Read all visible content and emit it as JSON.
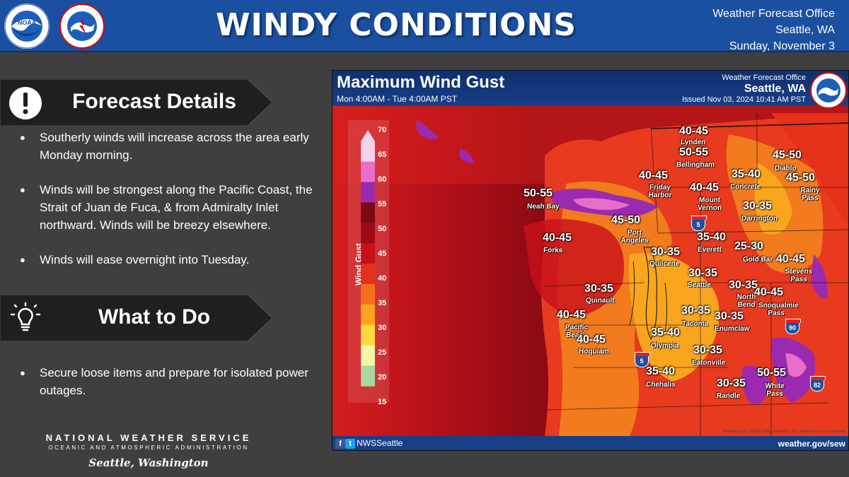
{
  "header": {
    "title": "WINDY CONDITIONS",
    "office": "Weather Forecast Office",
    "city": "Seattle, WA",
    "date": "Sunday, November 3",
    "logos": [
      "noaa-logo",
      "nws-logo"
    ]
  },
  "forecast_details": {
    "heading": "Forecast Details",
    "icon": "exclamation-icon",
    "bullets": [
      "Southerly winds will increase across the area early Monday morning.",
      "Winds will be strongest along the Pacific Coast, the Strait of Juan de Fuca, & from Admiralty Inlet northward. Winds will be breezy elsewhere.",
      "Winds will ease overnight into Tuesday."
    ]
  },
  "what_to_do": {
    "heading": "What to Do",
    "icon": "lightbulb-icon",
    "bullets": [
      "Secure loose items and prepare for isolated power outages."
    ]
  },
  "footer": {
    "agency": "NATIONAL WEATHER SERVICE",
    "subagency": "OCEANIC AND ATMOSPHERIC ADMINISTRATION",
    "location": "Seattle, Washington"
  },
  "map": {
    "title": "Maximum Wind Gust",
    "period": "Mon 4:00AM - Tue 4:00AM PST",
    "office": "Weather Forecast Office",
    "city": "Seattle, WA",
    "issued": "Issued Nov 03, 2024 10:41 AM PST",
    "social": "NWSSeattle",
    "url": "weather.gov/sew",
    "credit": "NRS/Airbus DS, USDA, USGS, AeroGRID, IGN, and the GIS User Community",
    "legend": {
      "label": "Wind Gust (mile_per_hour)",
      "ticks": [
        "70",
        "65",
        "60",
        "55",
        "50",
        "45",
        "40",
        "35",
        "30",
        "25",
        "20",
        "15"
      ],
      "colors": [
        "#f7d3ea",
        "#e86fc8",
        "#9a2bb0",
        "#7a0a14",
        "#9c0c14",
        "#c8101a",
        "#e5301a",
        "#f5701a",
        "#f9a51e",
        "#fbd93c",
        "#f3f5a8",
        "#a8d8a0"
      ]
    },
    "locations": [
      {
        "range": "40-45",
        "name": "Lynden"
      },
      {
        "range": "50-55",
        "name": "Bellingham"
      },
      {
        "range": "45-50",
        "name": "Diablo"
      },
      {
        "range": "40-45",
        "name": "Friday Harbor"
      },
      {
        "range": "35-40",
        "name": "Concrete"
      },
      {
        "range": "45-50",
        "name": "Rainy Pass"
      },
      {
        "range": "50-55",
        "name": "Neah Bay"
      },
      {
        "range": "40-45",
        "name": "Mount Vernon"
      },
      {
        "range": "30-35",
        "name": "Darrington"
      },
      {
        "range": "45-50",
        "name": "Port Angeles"
      },
      {
        "range": "40-45",
        "name": "Forks"
      },
      {
        "range": "35-40",
        "name": "Everett"
      },
      {
        "range": "30-35",
        "name": "Quilcene"
      },
      {
        "range": "25-30",
        "name": "Gold Bar"
      },
      {
        "range": "40-45",
        "name": "Stevens Pass"
      },
      {
        "range": "30-35",
        "name": "Seattle"
      },
      {
        "range": "30-35",
        "name": "Quinault"
      },
      {
        "range": "30-35",
        "name": "North Bend"
      },
      {
        "range": "40-45",
        "name": "Snoqualmie Pass"
      },
      {
        "range": "40-45",
        "name": "Pacific Beach"
      },
      {
        "range": "30-35",
        "name": "Tacoma"
      },
      {
        "range": "30-35",
        "name": "Enumclaw"
      },
      {
        "range": "40-45",
        "name": "Hoquiam"
      },
      {
        "range": "35-40",
        "name": "Olympia"
      },
      {
        "range": "30-35",
        "name": "Eatonville"
      },
      {
        "range": "35-40",
        "name": "Chehalis"
      },
      {
        "range": "50-55",
        "name": "White Pass"
      },
      {
        "range": "30-35",
        "name": "Randle"
      }
    ],
    "highways": [
      "5",
      "5",
      "90",
      "82"
    ]
  }
}
